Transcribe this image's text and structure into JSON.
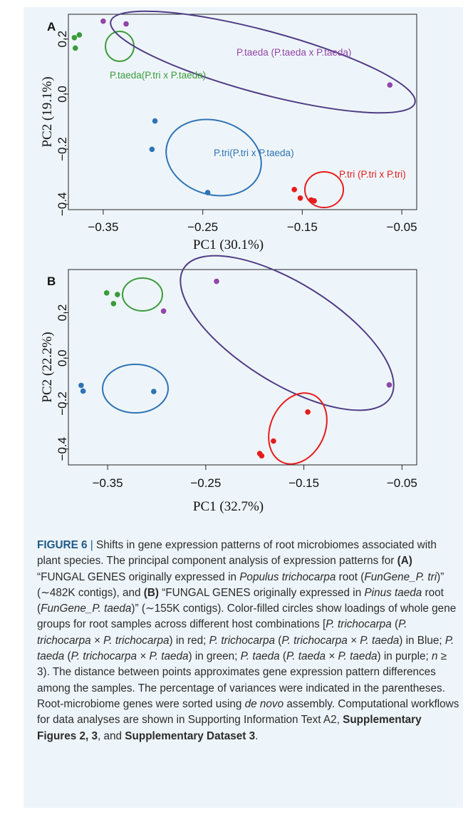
{
  "chart_data": [
    {
      "type": "scatter",
      "panel_label": "A",
      "xlabel": "PC1 (30.1%)",
      "ylabel": "PC2 (19.1%)",
      "xlim": [
        -0.385,
        -0.035
      ],
      "ylim": [
        -0.42,
        0.29
      ],
      "x_ticks": [
        "-0.35",
        "-0.25",
        "-0.15",
        "-0.05"
      ],
      "x_tick_values": [
        -0.35,
        -0.25,
        -0.15,
        -0.05
      ],
      "y_ticks": [
        "-0.4",
        "-0.2",
        "0.0",
        "0.2"
      ],
      "y_tick_values": [
        -0.4,
        -0.2,
        0.0,
        0.2
      ],
      "series": [
        {
          "name": "P.taeda(P.tri x P.taeda)",
          "color": "#3a9b3a",
          "points": [
            [
              -0.379,
              0.205
            ],
            [
              -0.374,
              0.215
            ],
            [
              -0.378,
              0.167
            ]
          ]
        },
        {
          "name": "P.taeda (P.taeda x P.taeda)",
          "color": "#9245a8",
          "points": [
            [
              -0.35,
              0.265
            ],
            [
              -0.327,
              0.255
            ],
            [
              -0.062,
              0.033
            ]
          ]
        },
        {
          "name": "P.tri(P.tri x P.taeda)",
          "color": "#2e74b5",
          "points": [
            [
              -0.298,
              -0.098
            ],
            [
              -0.301,
              -0.201
            ],
            [
              -0.245,
              -0.358
            ]
          ]
        },
        {
          "name": "P.tri (P.tri x P.tri)",
          "color": "#e61c1c",
          "points": [
            [
              -0.158,
              -0.347
            ],
            [
              -0.152,
              -0.378
            ],
            [
              -0.141,
              -0.385
            ],
            [
              -0.138,
              -0.388
            ]
          ]
        }
      ]
    },
    {
      "type": "scatter",
      "panel_label": "B",
      "xlabel": "PC1 (32.7%)",
      "ylabel": "PC2 (22.2%)",
      "xlim": [
        -0.39,
        -0.035
      ],
      "ylim": [
        -0.47,
        0.39
      ],
      "x_ticks": [
        "-0.35",
        "-0.25",
        "-0.15",
        "-0.05"
      ],
      "x_tick_values": [
        -0.35,
        -0.25,
        -0.15,
        -0.05
      ],
      "y_ticks": [
        "-0.4",
        "-0.2",
        "0.0",
        "0.2"
      ],
      "y_tick_values": [
        -0.4,
        -0.2,
        0.0,
        0.2
      ],
      "series": [
        {
          "name": "green",
          "color": "#3a9b3a",
          "points": [
            [
              -0.351,
              0.287
            ],
            [
              -0.34,
              0.28
            ],
            [
              -0.344,
              0.24
            ]
          ]
        },
        {
          "name": "purple",
          "color": "#9245a8",
          "points": [
            [
              -0.239,
              0.338
            ],
            [
              -0.293,
              0.207
            ],
            [
              -0.063,
              -0.118
            ]
          ]
        },
        {
          "name": "blue",
          "color": "#2e74b5",
          "points": [
            [
              -0.377,
              -0.12
            ],
            [
              -0.375,
              -0.145
            ],
            [
              -0.303,
              -0.147
            ]
          ]
        },
        {
          "name": "red",
          "color": "#e61c1c",
          "points": [
            [
              -0.146,
              -0.237
            ],
            [
              -0.181,
              -0.365
            ],
            [
              -0.195,
              -0.42
            ],
            [
              -0.193,
              -0.43
            ]
          ]
        }
      ]
    }
  ],
  "caption": {
    "figure_label": "FIGURE 6",
    "separator": "|",
    "text_1": " Shifts in gene expression patterns of root microbiomes associated with plant species. The principal component analysis of expression patterns for ",
    "ref_a": "(A)",
    "text_2": " “FUNGAL GENES originally expressed in ",
    "italic_1": "Populus trichocarpa",
    "text_3": " root (",
    "italic_2": "FunGene_P. tri",
    "text_4": ")” (∼482K contigs), and ",
    "ref_b": "(B)",
    "text_5": " “FUNGAL GENES originally expressed in ",
    "italic_3": "Pinus taeda",
    "text_6": " root (",
    "italic_4": "FunGene_P. taeda",
    "text_7": ")” (∼155K contigs). Color-filled circles show loadings of whole gene groups for root samples across different host combinations [",
    "italic_5": "P. trichocarpa",
    "text_8": " (",
    "italic_6": "P. trichocarpa × P. trichocarpa",
    "text_9": ") in red; ",
    "italic_7": "P. trichocarpa",
    "text_10": " (",
    "italic_8": "P. trichocarpa × P. taeda",
    "text_11": ") in Blue; ",
    "italic_9": "P. taeda",
    "text_12": " (",
    "italic_10": "P. trichocarpa × P. taeda",
    "text_13": ") in green; ",
    "italic_11": "P. taeda",
    "text_14": " (",
    "italic_12": "P. taeda × P. taeda",
    "text_15": ") in purple; ",
    "italic_13": "n",
    "text_16": " ≥ 3). The distance between points approximates gene expression pattern differences among the samples. The percentage of variances were indicated in the parentheses. Root-microbiome genes were sorted using ",
    "italic_14": "de novo",
    "text_17": " assembly. Computational workflows for data analyses are shown in Supporting Information Text A2, ",
    "bold_1": "Supplementary Figures 2, 3",
    "text_18": ", and ",
    "bold_2": "Supplementary Dataset 3",
    "text_19": "."
  }
}
